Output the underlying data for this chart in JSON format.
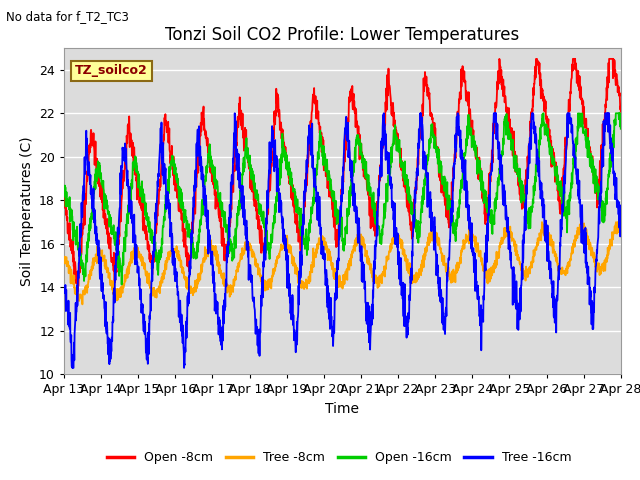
{
  "title": "Tonzi Soil CO2 Profile: Lower Temperatures",
  "xlabel": "Time",
  "ylabel": "Soil Temperatures (C)",
  "ylim": [
    10,
    25
  ],
  "xlim": [
    0,
    15
  ],
  "subtitle": "No data for f_T2_TC3",
  "legend_label": "TZ_soilco2",
  "legend_entries": [
    "Open -8cm",
    "Tree -8cm",
    "Open -16cm",
    "Tree -16cm"
  ],
  "line_colors": [
    "#ff0000",
    "#ffa500",
    "#00cc00",
    "#0000ff"
  ],
  "background_color": "#dcdcdc",
  "title_fontsize": 12,
  "tick_labels": [
    "Apr 13",
    "Apr 14",
    "Apr 15",
    "Apr 16",
    "Apr 17",
    "Apr 18",
    "Apr 19",
    "Apr 20",
    "Apr 21",
    "Apr 22",
    "Apr 23",
    "Apr 24",
    "Apr 25",
    "Apr 26",
    "Apr 27",
    "Apr 28"
  ],
  "yticks": [
    10,
    12,
    14,
    16,
    18,
    20,
    22,
    24
  ]
}
